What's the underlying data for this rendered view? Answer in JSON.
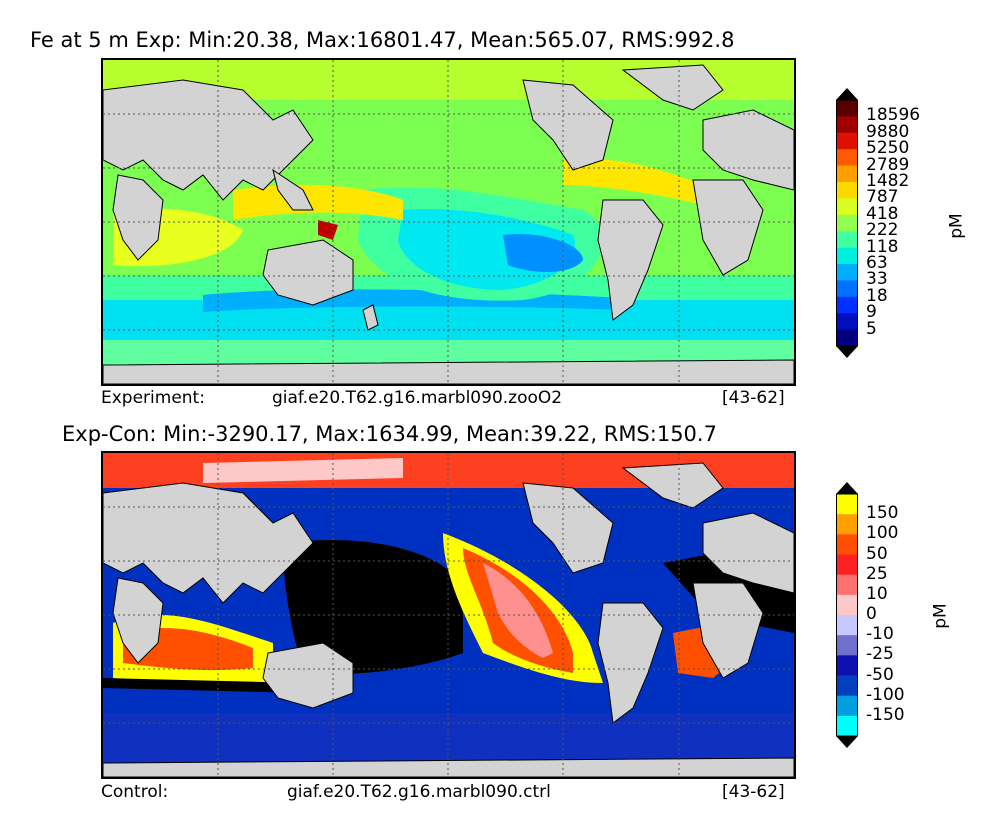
{
  "panels": [
    {
      "title": "Fe at 5 m Exp: Min:20.38, Max:16801.47, Mean:565.07, RMS:992.8",
      "footer_label": "Experiment:",
      "footer_case": "giaf.e20.T62.g16.marbl090.zooO2",
      "footer_years": "[43-62]",
      "colorbar": {
        "unit": "pM",
        "ticks": [
          "18596",
          "9880",
          "5250",
          "2789",
          "1482",
          "787",
          "418",
          "222",
          "118",
          "63",
          "33",
          "18",
          "9",
          "5"
        ],
        "colors": [
          "#5a0000",
          "#a00000",
          "#e01000",
          "#ff5a00",
          "#ffa000",
          "#ffd800",
          "#d8ff20",
          "#90ff50",
          "#40ffa0",
          "#00f0e0",
          "#00b0ff",
          "#0070ff",
          "#0030ff",
          "#0010c0",
          "#000080"
        ]
      }
    },
    {
      "title": "Exp-Con: Min:-3290.17, Max:1634.99, Mean:39.22, RMS:150.7",
      "footer_label": "Control:",
      "footer_case": "giaf.e20.T62.g16.marbl090.ctrl",
      "footer_years": "[43-62]",
      "colorbar": {
        "unit": "pM",
        "ticks": [
          "150",
          "100",
          "50",
          "25",
          "10",
          "0",
          "-10",
          "-25",
          "-50",
          "-100",
          "-150"
        ],
        "colors": [
          "#ffff00",
          "#ffa000",
          "#ff5000",
          "#ff2020",
          "#ff7070",
          "#ffc8c8",
          "#c8c8ff",
          "#7070d0",
          "#1010b0",
          "#0040c0",
          "#00a0e0",
          "#00ffff"
        ]
      }
    }
  ],
  "colors": {
    "land": "#d3d3d3",
    "grid": "#555555"
  }
}
